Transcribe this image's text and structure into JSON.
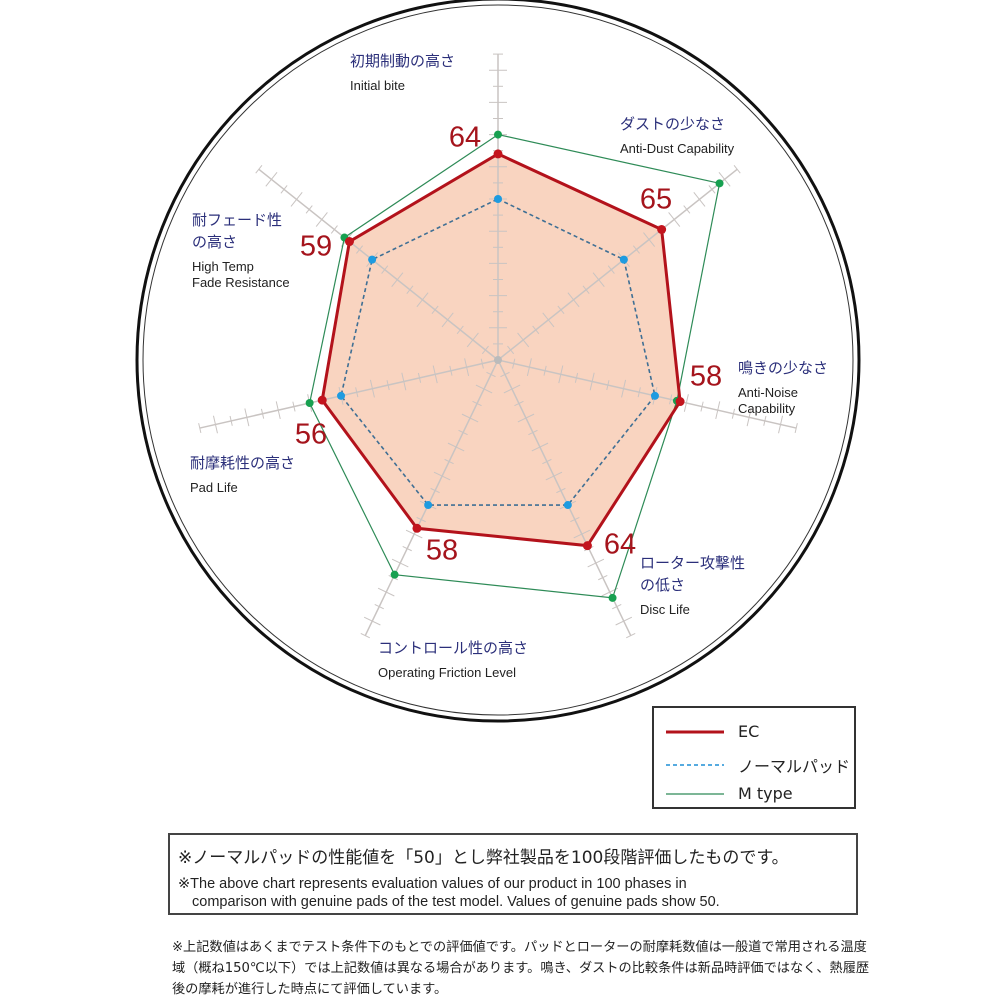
{
  "chart_data": {
    "type": "radar",
    "axes": [
      {
        "jp": [
          "初期制動の高さ"
        ],
        "en": [
          "Initial bite"
        ]
      },
      {
        "jp": [
          "ダストの少なさ"
        ],
        "en": [
          "Anti-Dust Capability"
        ]
      },
      {
        "jp": [
          "鳴きの少なさ"
        ],
        "en": [
          "Anti-Noise",
          "Capability"
        ]
      },
      {
        "jp": [
          "ローター攻撃性",
          "の低さ"
        ],
        "en": [
          "Disc Life"
        ]
      },
      {
        "jp": [
          "コントロール性の高さ"
        ],
        "en": [
          "Operating Friction Level"
        ]
      },
      {
        "jp": [
          "耐摩耗性の高さ"
        ],
        "en": [
          "Pad Life"
        ]
      },
      {
        "jp": [
          "耐フェード性",
          "の高さ"
        ],
        "en": [
          "High Temp",
          "Fade Resistance"
        ]
      }
    ],
    "range": [
      0,
      100
    ],
    "series": [
      {
        "name": "EC",
        "values": [
          64,
          65,
          58,
          64,
          58,
          56,
          59
        ],
        "color": "#b3121b",
        "fill": "#f9d4c0",
        "style": "solid",
        "labeled": true
      },
      {
        "name": "ノーマルパッド",
        "values": [
          50,
          50,
          50,
          50,
          50,
          50,
          50
        ],
        "color": "#1e8fd6",
        "style": "dashed"
      },
      {
        "name": "M type",
        "values": [
          70,
          88,
          57,
          82,
          74,
          60,
          61
        ],
        "color": "#2e8b57",
        "style": "solid"
      }
    ],
    "legend_position": "bottom-right"
  },
  "notes": {
    "box_jp": "※ノーマルパッドの性能値を「50」とし弊社製品を100段階評価したものです。",
    "box_en_1": "※The above chart represents evaluation values of our product in 100 phases in",
    "box_en_2": "comparison with genuine pads of the test model. Values of genuine pads show 50.",
    "footer": "※上記数値はあくまでテスト条件下のもとでの評価値です。パッドとローターの耐摩耗数値は一般道で常用される温度域（概ね150℃以下）では上記数値は異なる場合があります。鳴き、ダストの比較条件は新品時評価ではなく、熱履歴後の摩耗が進行した時点にて評価しています。"
  }
}
